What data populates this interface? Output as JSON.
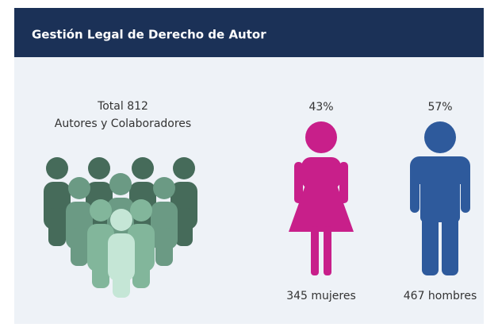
{
  "header": {
    "title": "Gestión Legal de Derecho de Autor"
  },
  "total": {
    "line1": "Total 812",
    "line2": "Autores y Colaboradores"
  },
  "women": {
    "percent": "43%",
    "label": "345 mujeres"
  },
  "men": {
    "percent": "57%",
    "label": "467 hombres"
  }
}
